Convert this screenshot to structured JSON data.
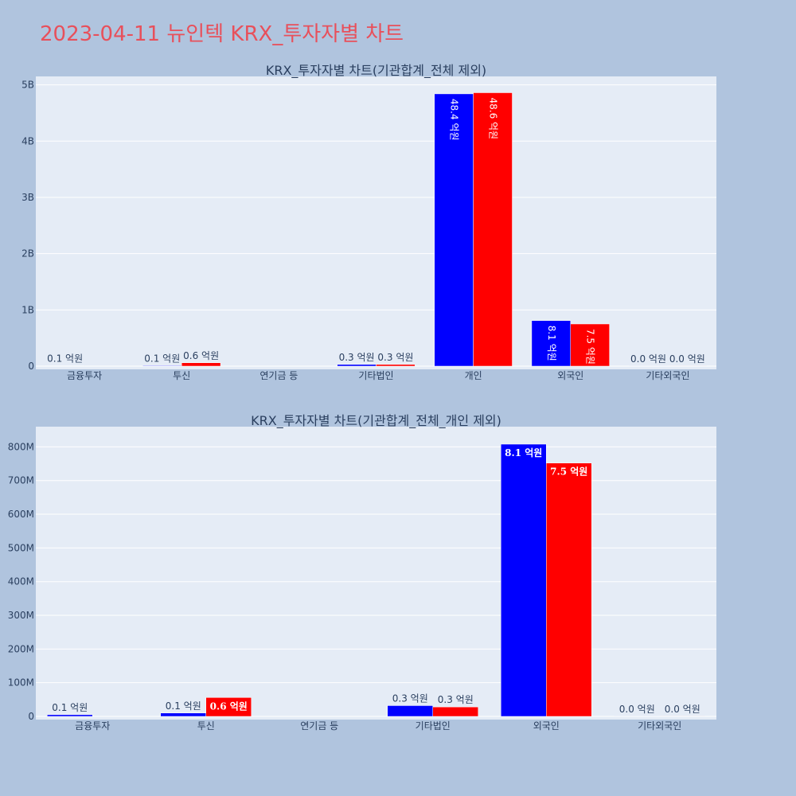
{
  "page": {
    "title": "2023-04-11 뉴인텍 KRX_투자자별 차트"
  },
  "colors": {
    "series_a": "#0000ff",
    "series_b": "#ff0000"
  },
  "chart_data": [
    {
      "type": "bar",
      "title": "KRX_투자자별 차트(기관합계_전체 제외)",
      "categories": [
        "금융투자",
        "투신",
        "연기금 등",
        "기타법인",
        "개인",
        "외국인",
        "기타외국인"
      ],
      "series": [
        {
          "color": "#0000ff",
          "values": [
            5000000,
            10000000,
            0,
            30000000,
            4840000000,
            810000000,
            500000
          ],
          "labels": [
            "0.1 억원",
            "0.1 억원",
            "",
            "0.3 억원",
            "48.4 억원",
            "8.1 억원",
            "0.0 억원"
          ]
        },
        {
          "color": "#ff0000",
          "values": [
            0,
            60000000,
            0,
            30000000,
            4860000000,
            750000000,
            500000
          ],
          "labels": [
            "",
            "0.6 억원",
            "",
            "0.3 억원",
            "48.6 억원",
            "7.5 억원",
            "0.0 억원"
          ]
        }
      ],
      "ylim": [
        0,
        5150000000
      ],
      "yticks": [
        0,
        1000000000,
        2000000000,
        3000000000,
        4000000000,
        5000000000
      ],
      "yticklabels": [
        "0",
        "1B",
        "2B",
        "3B",
        "4B",
        "5B"
      ],
      "grid": true
    },
    {
      "type": "bar",
      "title": "KRX_투자자별 차트(기관합계_전체_개인 제외)",
      "categories": [
        "금융투자",
        "투신",
        "연기금 등",
        "기타법인",
        "외국인",
        "기타외국인"
      ],
      "series": [
        {
          "color": "#0000ff",
          "values": [
            5000000,
            10000000,
            0,
            32000000,
            808000000,
            500000
          ],
          "labels": [
            "0.1 억원",
            "0.1 억원",
            "",
            "0.3 억원",
            "8.1 억원",
            "0.0 억원"
          ]
        },
        {
          "color": "#ff0000",
          "values": [
            0,
            56000000,
            0,
            28000000,
            752000000,
            500000
          ],
          "labels": [
            "",
            "0.6 억원",
            "",
            "0.3 억원",
            "7.5 억원",
            "0.0 억원"
          ]
        }
      ],
      "ylim": [
        0,
        860000000
      ],
      "yticks": [
        0,
        100000000,
        200000000,
        300000000,
        400000000,
        500000000,
        600000000,
        700000000,
        800000000
      ],
      "yticklabels": [
        "0",
        "100M",
        "200M",
        "300M",
        "400M",
        "500M",
        "600M",
        "700M",
        "800M"
      ],
      "grid": true
    }
  ]
}
